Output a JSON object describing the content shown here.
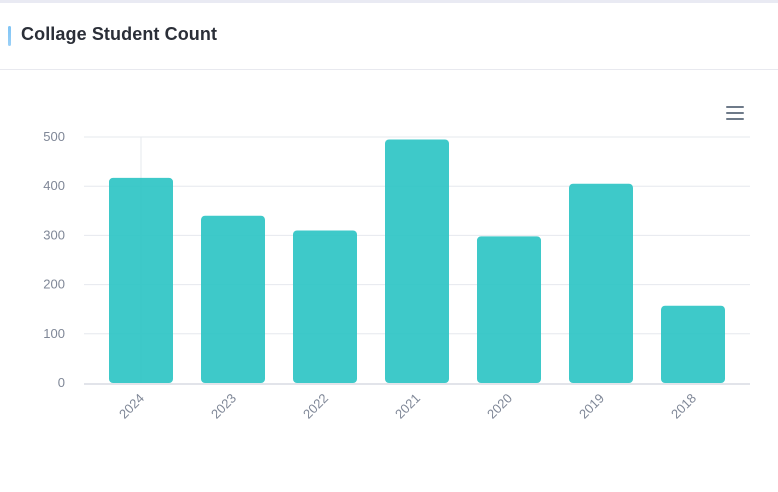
{
  "card": {
    "title": "Collage Student Count"
  },
  "toolbar": {
    "menu_icon": "hamburger-menu-icon"
  },
  "colors": {
    "bar": "#2ec4c4",
    "grid": "#e6e8ee",
    "axis": "#e2e4ea",
    "label": "#7f8797",
    "title_accent": "#8ccaf6"
  },
  "chart_data": {
    "type": "bar",
    "title": "",
    "xlabel": "",
    "ylabel": "",
    "categories": [
      "2024",
      "2023",
      "2022",
      "2021",
      "2020",
      "2019",
      "2018"
    ],
    "values": [
      417,
      340,
      310,
      495,
      298,
      405,
      157
    ],
    "ylim": [
      0,
      500
    ],
    "yticks": [
      "0",
      "100",
      "200",
      "300",
      "400",
      "500"
    ],
    "grid": true,
    "legend": "none"
  }
}
